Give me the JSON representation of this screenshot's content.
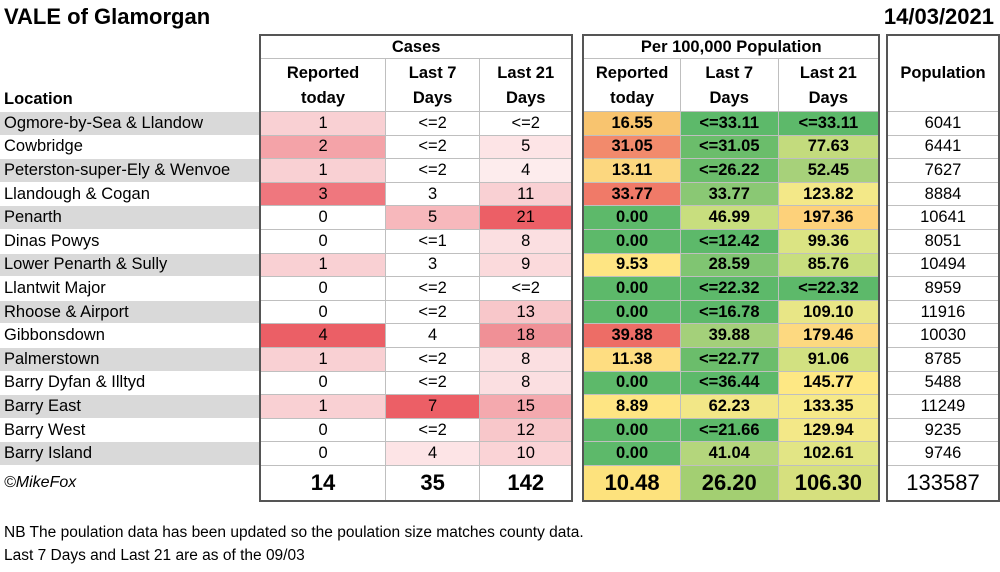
{
  "title": "VALE of Glamorgan",
  "date": "14/03/2021",
  "headers": {
    "cases_group": "Cases",
    "per100k_group": "Per 100,000 Population",
    "location": "Location",
    "reported_line1": "Reported",
    "reported_line2": "today",
    "last7_line1": "Last 7",
    "last7_line2": "Days",
    "last21_line1": "Last 21",
    "last21_line2": "Days",
    "population": "Population"
  },
  "rows": [
    {
      "location": "Ogmore-by-Sea & Llandow",
      "reported": "1",
      "last7": "<=2",
      "last21": "<=2",
      "rate_reported": "16.55",
      "rate_last7": "<=33.11",
      "rate_last21": "<=33.11",
      "population": "6041",
      "c_rep": "#f9d0d3",
      "c_l7": "#ffffff",
      "c_l21": "#ffffff",
      "r_rep": "#f8c46f",
      "r_l7": "#5db96a",
      "r_l21": "#5db96a"
    },
    {
      "location": "Cowbridge",
      "reported": "2",
      "last7": "<=2",
      "last21": "5",
      "population": "6441",
      "rate_reported": "31.05",
      "rate_last7": "<=31.05",
      "rate_last21": "77.63",
      "c_rep": "#f4a3a8",
      "c_l7": "#ffffff",
      "c_l21": "#fde4e6",
      "r_rep": "#f28a6c",
      "r_l7": "#6bbd6b",
      "r_l21": "#c3db7d"
    },
    {
      "location": "Peterston-super-Ely & Wenvoe",
      "reported": "1",
      "last7": "<=2",
      "last21": "4",
      "rate_reported": "13.11",
      "rate_last7": "<=26.22",
      "rate_last21": "52.45",
      "population": "7627",
      "c_rep": "#f9d0d3",
      "c_l7": "#ffffff",
      "c_l21": "#fdeced",
      "r_rep": "#fcd77f",
      "r_l7": "#6bbd6b",
      "r_l21": "#a7d17a"
    },
    {
      "location": "Llandough & Cogan",
      "reported": "3",
      "last7": "3",
      "last21": "11",
      "rate_reported": "33.77",
      "rate_last7": "33.77",
      "rate_last21": "123.82",
      "population": "8884",
      "c_rep": "#ef777e",
      "c_l7": "#ffffff",
      "c_l21": "#f9d0d3",
      "r_rep": "#f07a68",
      "r_l7": "#8ac874",
      "r_l21": "#f3e888"
    },
    {
      "location": "Penarth",
      "reported": "0",
      "last7": "5",
      "last21": "21",
      "rate_reported": "0.00",
      "rate_last7": "46.99",
      "rate_last21": "197.36",
      "population": "10641",
      "c_rep": "#ffffff",
      "c_l7": "#f7b8bc",
      "c_l21": "#ec5f66",
      "r_rep": "#5db96a",
      "r_l7": "#c8de7e",
      "r_l21": "#fdd17a"
    },
    {
      "location": "Dinas Powys",
      "reported": "0",
      "last7": "<=1",
      "last21": "8",
      "rate_reported": "0.00",
      "rate_last7": "<=12.42",
      "rate_last21": "99.36",
      "population": "8051",
      "c_rep": "#ffffff",
      "c_l7": "#ffffff",
      "c_l21": "#fbdfe1",
      "r_rep": "#5db96a",
      "r_l7": "#5db96a",
      "r_l21": "#dbe483"
    },
    {
      "location": "Lower Penarth & Sully",
      "reported": "1",
      "last7": "3",
      "last21": "9",
      "rate_reported": "9.53",
      "rate_last7": "28.59",
      "rate_last21": "85.76",
      "population": "10494",
      "c_rep": "#f9d0d3",
      "c_l7": "#ffffff",
      "c_l21": "#fbdadc",
      "r_rep": "#fee583",
      "r_l7": "#80c572",
      "r_l21": "#c8de7e"
    },
    {
      "location": "Llantwit Major",
      "reported": "0",
      "last7": "<=2",
      "last21": "<=2",
      "rate_reported": "0.00",
      "rate_last7": "<=22.32",
      "rate_last21": "<=22.32",
      "population": "8959",
      "c_rep": "#ffffff",
      "c_l7": "#ffffff",
      "c_l21": "#ffffff",
      "r_rep": "#5db96a",
      "r_l7": "#5db96a",
      "r_l21": "#5db96a"
    },
    {
      "location": "Rhoose & Airport",
      "reported": "0",
      "last7": "<=2",
      "last21": "13",
      "rate_reported": "0.00",
      "rate_last7": "<=16.78",
      "rate_last21": "109.10",
      "population": "11916",
      "c_rep": "#ffffff",
      "c_l7": "#ffffff",
      "c_l21": "#f8c7ca",
      "r_rep": "#5db96a",
      "r_l7": "#5db96a",
      "r_l21": "#e8e686"
    },
    {
      "location": "Gibbonsdown",
      "reported": "4",
      "last7": "4",
      "last21": "18",
      "rate_reported": "39.88",
      "rate_last7": "39.88",
      "rate_last21": "179.46",
      "population": "10030",
      "c_rep": "#eb5f66",
      "c_l7": "#ffffff",
      "c_l21": "#f09096",
      "r_rep": "#ed6d66",
      "r_l7": "#a4d07a",
      "r_l21": "#fdd980"
    },
    {
      "location": "Palmerstown",
      "reported": "1",
      "last7": "<=2",
      "last21": "8",
      "rate_reported": "11.38",
      "rate_last7": "<=22.77",
      "rate_last21": "91.06",
      "population": "8785",
      "c_rep": "#f9d0d3",
      "c_l7": "#ffffff",
      "c_l21": "#fbdfe1",
      "r_rep": "#fedd81",
      "r_l7": "#6bbd6b",
      "r_l21": "#d2e181"
    },
    {
      "location": "Barry Dyfan & Illtyd",
      "reported": "0",
      "last7": "<=2",
      "last21": "8",
      "rate_reported": "0.00",
      "rate_last7": "<=36.44",
      "rate_last21": "145.77",
      "population": "5488",
      "c_rep": "#ffffff",
      "c_l7": "#ffffff",
      "c_l21": "#fbdfe1",
      "r_rep": "#5db96a",
      "r_l7": "#5db96a",
      "r_l21": "#fee884"
    },
    {
      "location": "Barry East",
      "reported": "1",
      "last7": "7",
      "last21": "15",
      "rate_reported": "8.89",
      "rate_last7": "62.23",
      "rate_last21": "133.35",
      "population": "11249",
      "c_rep": "#f9d0d3",
      "c_l7": "#ec5f66",
      "c_l21": "#f4a9ae",
      "r_rep": "#fee583",
      "r_l7": "#f2e787",
      "r_l21": "#f6e988"
    },
    {
      "location": "Barry West",
      "reported": "0",
      "last7": "<=2",
      "last21": "12",
      "rate_reported": "0.00",
      "rate_last7": "<=21.66",
      "rate_last21": "129.94",
      "population": "9235",
      "c_rep": "#ffffff",
      "c_l7": "#ffffff",
      "c_l21": "#f8c7ca",
      "r_rep": "#5db96a",
      "r_l7": "#5db96a",
      "r_l21": "#f3e888"
    },
    {
      "location": "Barry Island",
      "reported": "0",
      "last7": "4",
      "last21": "10",
      "rate_reported": "0.00",
      "rate_last7": "41.04",
      "rate_last21": "102.61",
      "population": "9746",
      "c_rep": "#ffffff",
      "c_l7": "#fde4e6",
      "c_l21": "#fad3d6",
      "r_rep": "#5db96a",
      "r_l7": "#b4d67c",
      "r_l21": "#e2e585"
    }
  ],
  "totals": {
    "credit": "©MikeFox",
    "reported": "14",
    "last7": "35",
    "last21": "142",
    "rate_reported": "10.48",
    "rate_last7": "26.20",
    "rate_last21": "106.30",
    "population": "133587",
    "c_rate_reported": "#fde27d",
    "c_rate_last7": "#a3cf72",
    "c_rate_last21": "#d6e07e"
  },
  "notes": [
    "NB The poulation data has been updated so the poulation size matches county data.",
    "Last 7 Days and Last 21 are as of the 09/03"
  ]
}
